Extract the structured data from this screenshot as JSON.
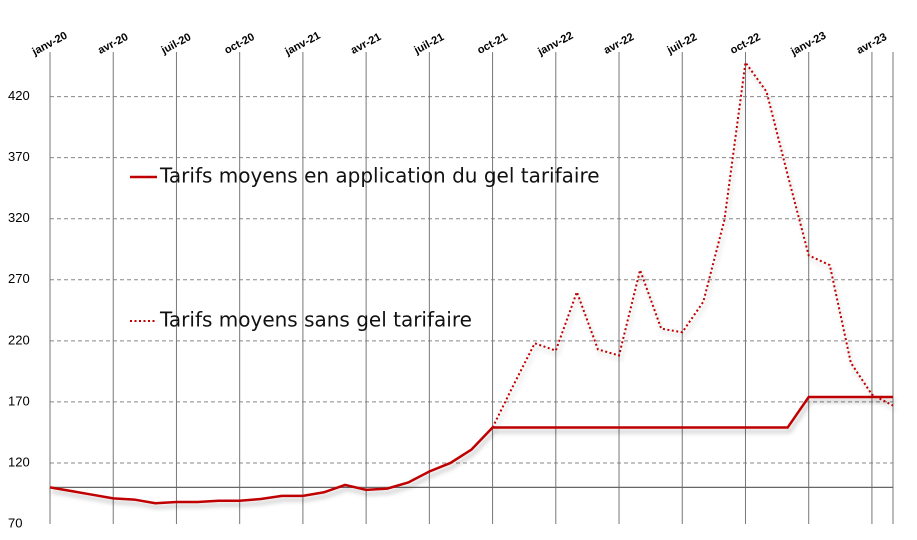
{
  "chart_data": {
    "type": "line",
    "categories": [
      "janv-20",
      null,
      null,
      "avr-20",
      null,
      null,
      "juil-20",
      null,
      null,
      "oct-20",
      null,
      null,
      "janv-21",
      null,
      null,
      "avr-21",
      null,
      null,
      "juil-21",
      null,
      null,
      "oct-21",
      null,
      null,
      "janv-22",
      null,
      null,
      "avr-22",
      null,
      null,
      "juil-22",
      null,
      null,
      "oct-22",
      null,
      null,
      "janv-23",
      null,
      null,
      "avr-23",
      null
    ],
    "series": [
      {
        "name": "Tarifs moyens en application du gel tarifaire",
        "color": "#c00000",
        "style": "solid",
        "values": [
          100,
          97,
          94,
          91,
          90,
          87,
          88,
          88,
          89,
          89,
          90.5,
          93,
          93,
          96,
          102,
          98,
          99,
          104,
          113,
          120,
          131,
          149,
          149,
          149,
          149,
          149,
          149,
          149,
          149,
          149,
          149,
          149,
          149,
          149,
          149,
          149,
          174,
          174,
          174,
          174,
          174
        ]
      },
      {
        "name": "Tarifs moyens sans gel tarifaire",
        "color": "#c00000",
        "style": "dotted",
        "values": [
          null,
          null,
          null,
          null,
          null,
          null,
          null,
          null,
          null,
          null,
          null,
          null,
          null,
          null,
          null,
          null,
          null,
          null,
          null,
          null,
          null,
          149,
          184,
          218,
          212,
          260,
          213,
          208,
          278,
          230,
          227,
          252,
          319,
          448,
          424,
          356,
          290,
          282,
          202,
          176,
          167
        ]
      }
    ],
    "ylim": [
      70,
      450
    ],
    "yticks": [
      70,
      120,
      170,
      220,
      270,
      320,
      370,
      420
    ],
    "baseline": 100,
    "grid": true
  }
}
